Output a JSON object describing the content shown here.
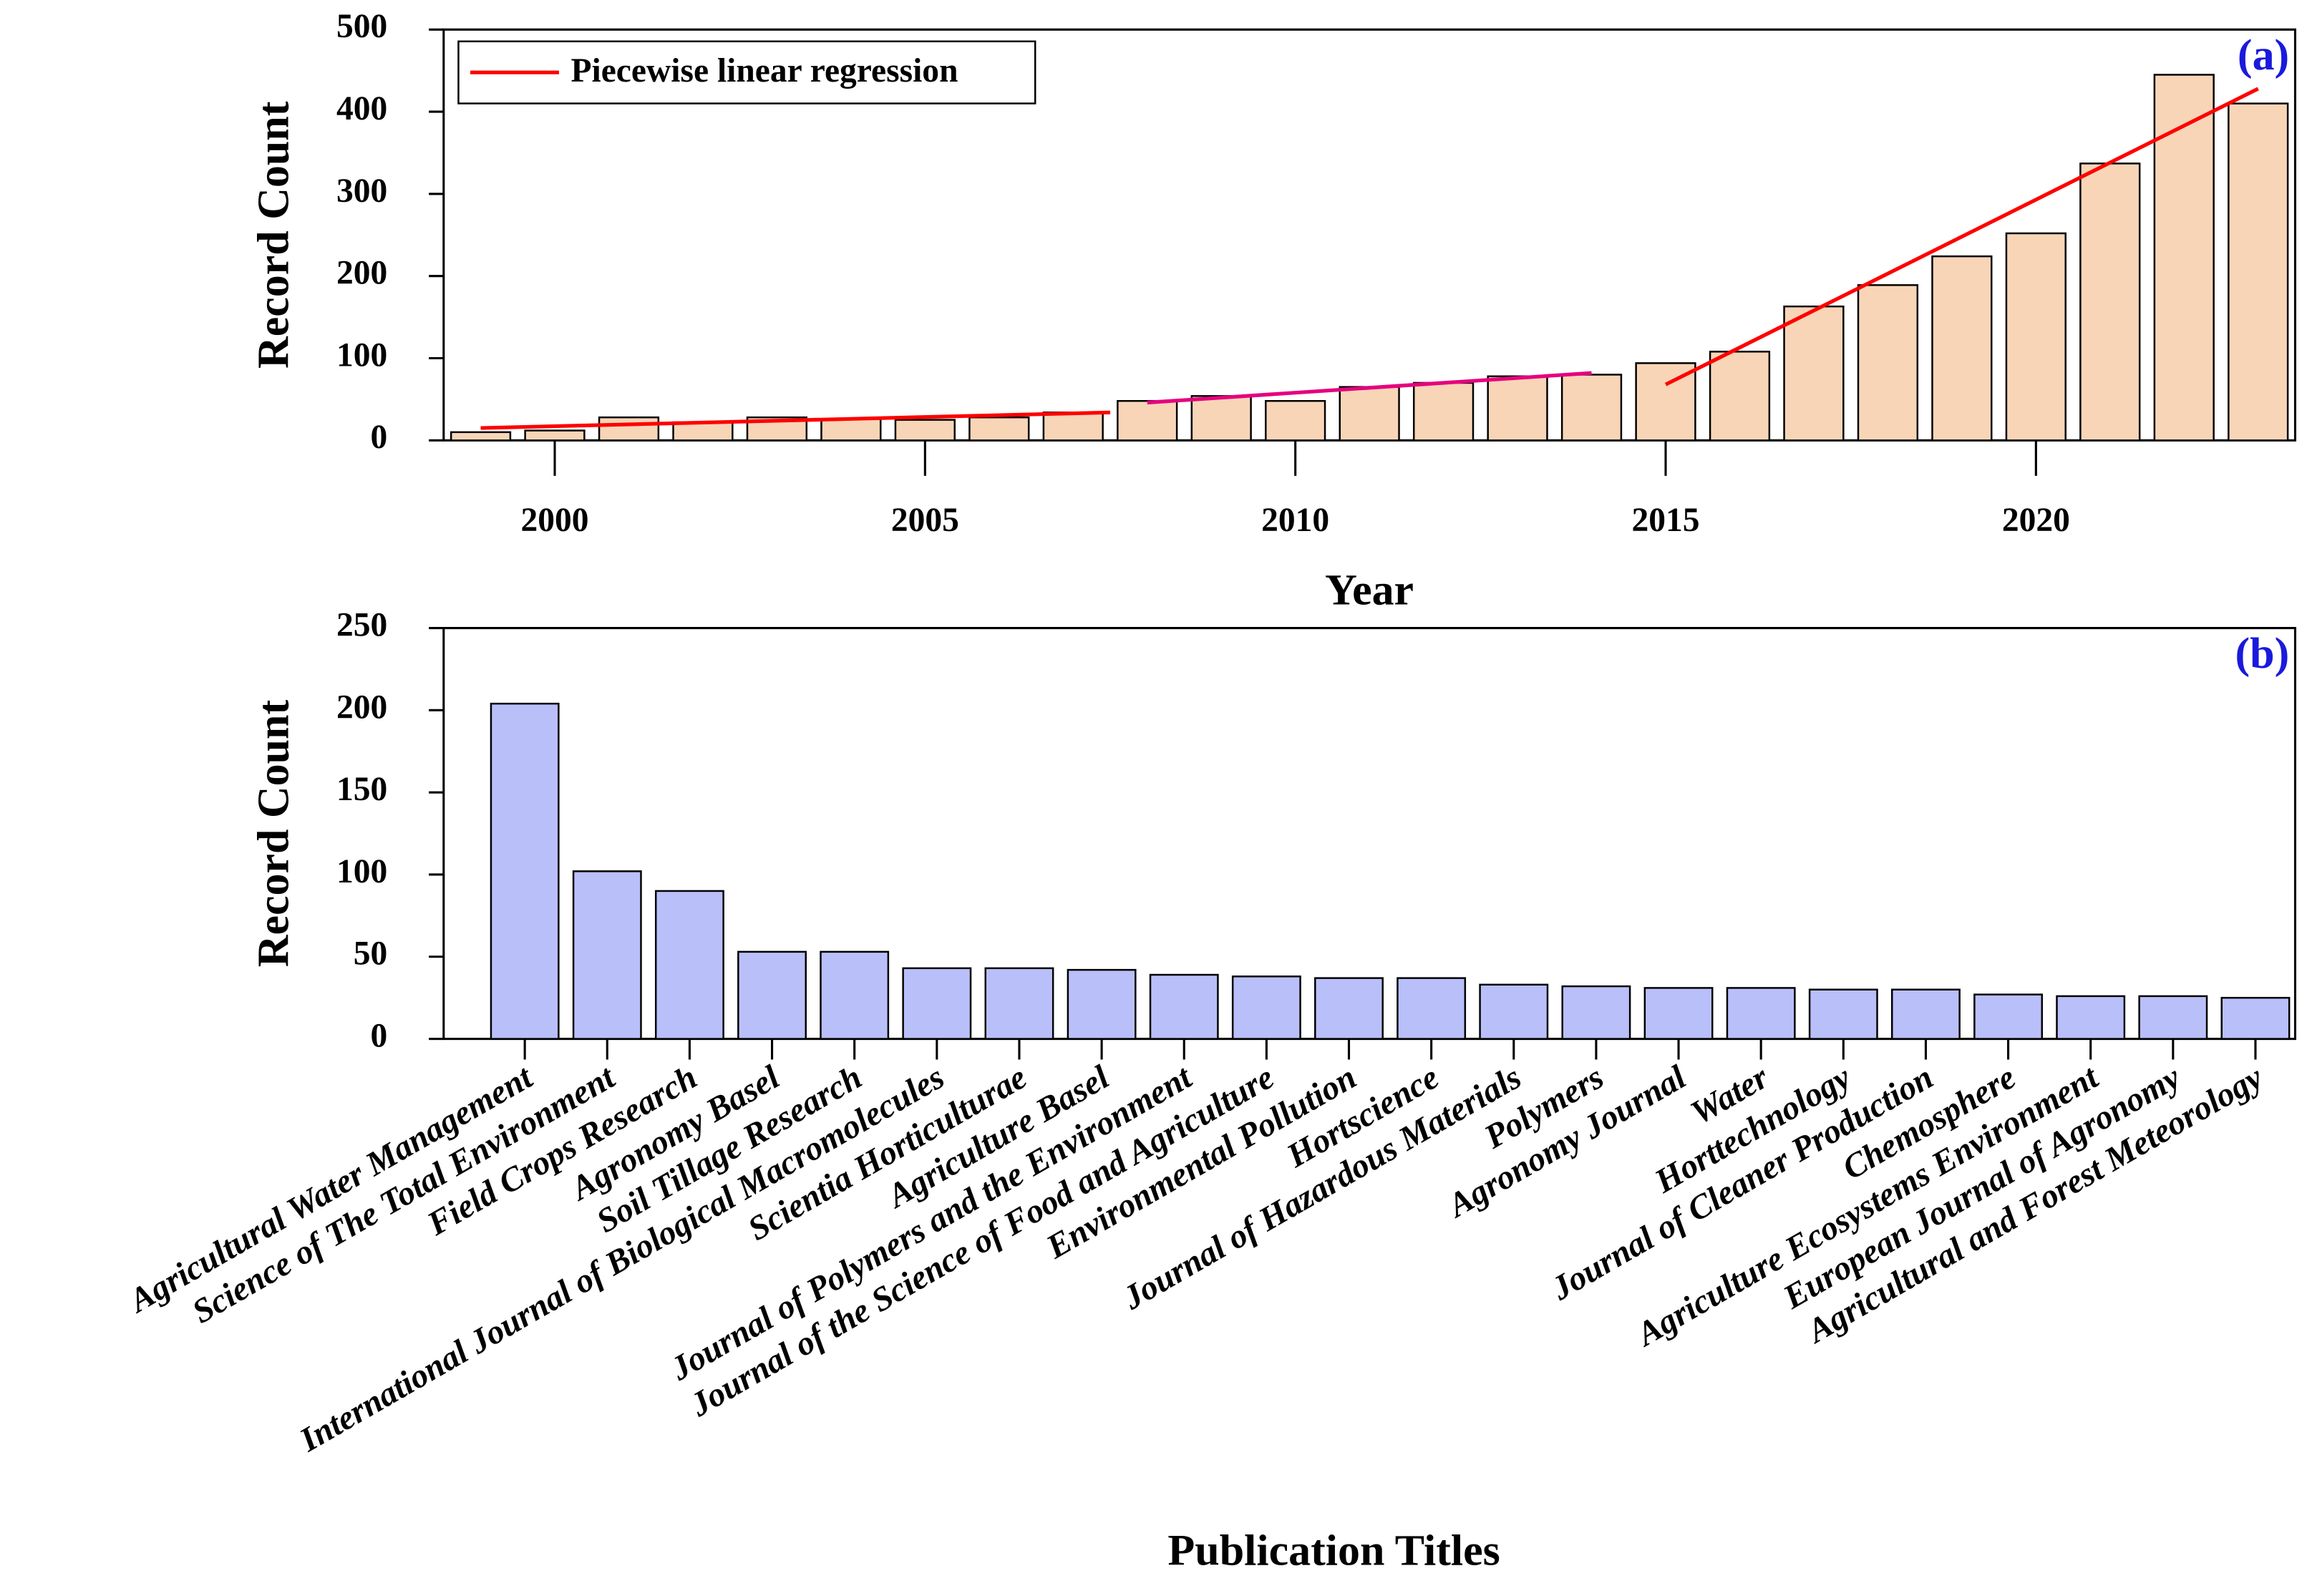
{
  "chart_data": [
    {
      "type": "bar",
      "label": "(a)",
      "xlabel": "Year",
      "ylabel": "Record Count",
      "x": [
        1999,
        2000,
        2001,
        2002,
        2003,
        2004,
        2005,
        2006,
        2007,
        2008,
        2009,
        2010,
        2011,
        2012,
        2013,
        2014,
        2015,
        2016,
        2017,
        2018,
        2019,
        2020,
        2021,
        2022,
        2023
      ],
      "values": [
        10,
        12,
        28,
        22,
        28,
        26,
        25,
        28,
        34,
        48,
        54,
        48,
        65,
        70,
        78,
        80,
        94,
        108,
        163,
        189,
        224,
        252,
        337,
        445,
        410
      ],
      "color": "#f9d5b7",
      "xlim": [
        1998.5,
        2023.5
      ],
      "xticks": [
        2000,
        2005,
        2010,
        2015,
        2020
      ],
      "ylim": [
        0,
        500
      ],
      "yticks": [
        0,
        100,
        200,
        300,
        400,
        500
      ],
      "legend": "upper left",
      "regression": {
        "name": "Piecewise linear regression",
        "color": "#ff0000",
        "segments": [
          {
            "x": [
              1999,
              2007.5
            ],
            "values": [
              15,
              34
            ],
            "color": "#ff0000"
          },
          {
            "x": [
              2008,
              2014
            ],
            "values": [
              46,
              82
            ],
            "color": "#e6007e"
          },
          {
            "x": [
              2015,
              2023
            ],
            "values": [
              68,
              428
            ],
            "color": "#ff0000"
          }
        ]
      }
    },
    {
      "type": "bar",
      "label": "(b)",
      "xlabel": "Publication Titles",
      "ylabel": "Record Count",
      "categories": [
        "Agricultural Water Management",
        "Science of The Total Environment",
        "Field Crops Research",
        "Agronomy Basel",
        "Soil Tillage Research",
        "International Journal of Biological Macromolecules",
        "Scientia Horticulturae",
        "Agriculture Basel",
        "Journal of Polymers and the Environment",
        "Journal of the Science of Food and Agriculture",
        "Environmental Pollution",
        "Hortscience",
        "Journal of Hazardous Materials",
        "Polymers",
        "Agronomy Journal",
        "Water",
        "Horttechnology",
        "Journal of Cleaner Production",
        "Chemosphere",
        "Agriculture Ecosystems Environment",
        "European Journal of Agronomy",
        "Agricultural and Forest Meteorology"
      ],
      "values": [
        204,
        102,
        90,
        53,
        53,
        43,
        43,
        42,
        39,
        38,
        37,
        37,
        33,
        32,
        31,
        31,
        30,
        30,
        27,
        26,
        26,
        25
      ],
      "color": "#b9bff9",
      "ylim": [
        0,
        250
      ],
      "yticks": [
        0,
        50,
        100,
        150,
        200,
        250
      ]
    }
  ]
}
